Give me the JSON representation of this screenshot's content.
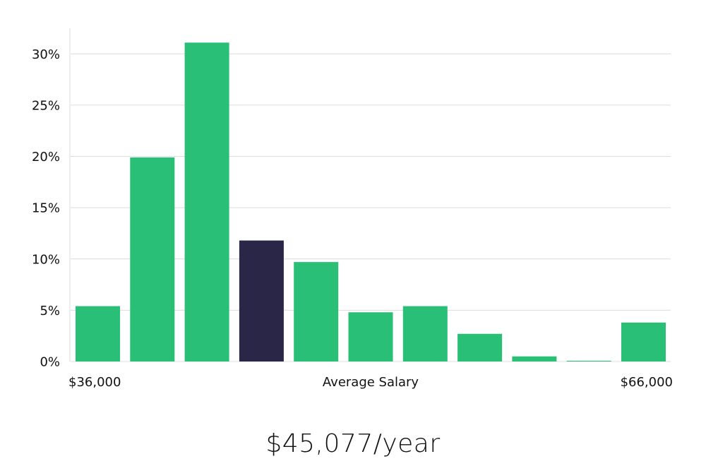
{
  "chart_data": {
    "type": "bar",
    "values": [
      5.4,
      19.9,
      31.1,
      11.8,
      9.7,
      4.8,
      5.4,
      2.7,
      0.5,
      0.05,
      3.8
    ],
    "highlight_index": 3,
    "ylim": [
      0,
      32.5
    ],
    "yticks": [
      {
        "value": 0,
        "label": "0%"
      },
      {
        "value": 5,
        "label": "5%"
      },
      {
        "value": 10,
        "label": "10%"
      },
      {
        "value": 15,
        "label": "15%"
      },
      {
        "value": 20,
        "label": "20%"
      },
      {
        "value": 25,
        "label": "25%"
      },
      {
        "value": 30,
        "label": "30%"
      }
    ],
    "x_min_label": "$36,000",
    "x_max_label": "$66,000",
    "xlabel": "Average Salary",
    "grid": true,
    "colors": {
      "bar": "#2abf77",
      "highlight": "#2a2647",
      "grid": "#dcdcdc",
      "text": "#111111"
    }
  },
  "salary_display": "$45,077/year"
}
